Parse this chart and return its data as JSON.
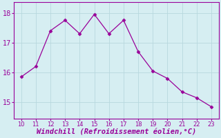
{
  "x": [
    10,
    11,
    12,
    13,
    14,
    15,
    16,
    17,
    18,
    19,
    20,
    21,
    22,
    23
  ],
  "y": [
    15.85,
    16.2,
    17.4,
    17.75,
    17.3,
    17.95,
    17.3,
    17.75,
    16.7,
    16.05,
    15.8,
    15.35,
    15.15,
    14.85
  ],
  "line_color": "#990099",
  "marker": "D",
  "marker_size": 2.5,
  "linewidth": 0.9,
  "xlabel": "Windchill (Refroidissement éolien,°C)",
  "xlabel_fontsize": 7.5,
  "ylabel_ticks": [
    15,
    16,
    17,
    18
  ],
  "xtick_labels": [
    "10",
    "11",
    "12",
    "13",
    "14",
    "15",
    "16",
    "17",
    "18",
    "19",
    "20",
    "21",
    "22",
    "23"
  ],
  "xlim": [
    9.5,
    23.5
  ],
  "ylim": [
    14.45,
    18.35
  ],
  "background_color": "#d6eef2",
  "grid_color": "#c0dce0",
  "spine_color": "#990099",
  "tick_color": "#990099",
  "label_color": "#990099"
}
